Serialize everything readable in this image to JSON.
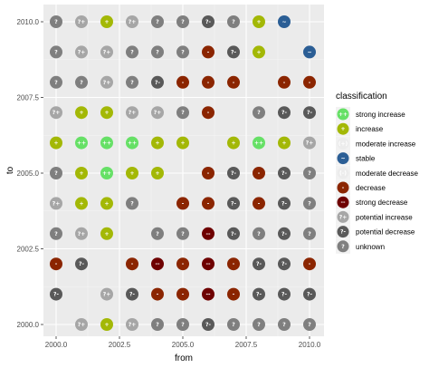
{
  "chart_data": {
    "type": "scatter",
    "xlabel": "from",
    "ylabel": "to",
    "xlim": [
      1999.95,
      2010.05
    ],
    "ylim": [
      1999.95,
      2010.05
    ],
    "x_ticks": [
      2000.0,
      2002.5,
      2005.0,
      2007.5,
      2010.0
    ],
    "x_tick_labels": [
      "2000.0",
      "2002.5",
      "2005.0",
      "2007.5",
      "2010.0"
    ],
    "y_ticks": [
      2000.0,
      2002.5,
      2005.0,
      2007.5,
      2010.0
    ],
    "y_tick_labels": [
      "2000.0",
      "2002.5",
      "2005.0",
      "2007.5",
      "2010.0"
    ],
    "grid": true,
    "legend_position": "right",
    "legend": {
      "title": "classification",
      "entries": [
        {
          "key": "strong_increase",
          "label": "strong increase",
          "glyph": "++",
          "color": "#66e066"
        },
        {
          "key": "increase",
          "label": "increase",
          "glyph": "+",
          "color": "#a3b806"
        },
        {
          "key": "moderate_increase",
          "label": "moderate increase",
          "glyph": "(+)",
          "color": "#ececec"
        },
        {
          "key": "stable",
          "label": "stable",
          "glyph": "~",
          "color": "#2b5e95"
        },
        {
          "key": "moderate_decrease",
          "label": "moderate decrease",
          "glyph": "(-)",
          "color": "#ececec"
        },
        {
          "key": "decrease",
          "label": "decrease",
          "glyph": "-",
          "color": "#8b2500"
        },
        {
          "key": "strong_decrease",
          "label": "strong decrease",
          "glyph": "--",
          "color": "#6e0000"
        },
        {
          "key": "potential_increase",
          "label": "potential increase",
          "glyph": "?+",
          "color": "#a6a6a6"
        },
        {
          "key": "potential_decrease",
          "label": "potential decrease",
          "glyph": "?-",
          "color": "#595959"
        },
        {
          "key": "unknown",
          "label": "unknown",
          "glyph": "?",
          "color": "#7f7f7f"
        }
      ]
    },
    "points": [
      {
        "x": 2000,
        "y": 2010,
        "class": "unknown"
      },
      {
        "x": 2001,
        "y": 2010,
        "class": "potential_increase"
      },
      {
        "x": 2002,
        "y": 2010,
        "class": "increase"
      },
      {
        "x": 2003,
        "y": 2010,
        "class": "potential_increase"
      },
      {
        "x": 2004,
        "y": 2010,
        "class": "unknown"
      },
      {
        "x": 2005,
        "y": 2010,
        "class": "unknown"
      },
      {
        "x": 2006,
        "y": 2010,
        "class": "potential_decrease"
      },
      {
        "x": 2007,
        "y": 2010,
        "class": "unknown"
      },
      {
        "x": 2008,
        "y": 2010,
        "class": "increase"
      },
      {
        "x": 2009,
        "y": 2010,
        "class": "stable"
      },
      {
        "x": 2000,
        "y": 2009,
        "class": "unknown"
      },
      {
        "x": 2001,
        "y": 2009,
        "class": "potential_increase"
      },
      {
        "x": 2002,
        "y": 2009,
        "class": "potential_increase"
      },
      {
        "x": 2003,
        "y": 2009,
        "class": "unknown"
      },
      {
        "x": 2004,
        "y": 2009,
        "class": "unknown"
      },
      {
        "x": 2005,
        "y": 2009,
        "class": "unknown"
      },
      {
        "x": 2006,
        "y": 2009,
        "class": "decrease"
      },
      {
        "x": 2007,
        "y": 2009,
        "class": "potential_decrease"
      },
      {
        "x": 2008,
        "y": 2009,
        "class": "increase"
      },
      {
        "x": 2010,
        "y": 2009,
        "class": "stable"
      },
      {
        "x": 2000,
        "y": 2008,
        "class": "unknown"
      },
      {
        "x": 2001,
        "y": 2008,
        "class": "unknown"
      },
      {
        "x": 2002,
        "y": 2008,
        "class": "potential_increase"
      },
      {
        "x": 2003,
        "y": 2008,
        "class": "unknown"
      },
      {
        "x": 2004,
        "y": 2008,
        "class": "potential_decrease"
      },
      {
        "x": 2005,
        "y": 2008,
        "class": "decrease"
      },
      {
        "x": 2006,
        "y": 2008,
        "class": "decrease"
      },
      {
        "x": 2007,
        "y": 2008,
        "class": "decrease"
      },
      {
        "x": 2009,
        "y": 2008,
        "class": "decrease"
      },
      {
        "x": 2010,
        "y": 2008,
        "class": "decrease"
      },
      {
        "x": 2000,
        "y": 2007,
        "class": "potential_increase"
      },
      {
        "x": 2001,
        "y": 2007,
        "class": "increase"
      },
      {
        "x": 2002,
        "y": 2007,
        "class": "increase"
      },
      {
        "x": 2003,
        "y": 2007,
        "class": "potential_increase"
      },
      {
        "x": 2004,
        "y": 2007,
        "class": "potential_increase"
      },
      {
        "x": 2005,
        "y": 2007,
        "class": "unknown"
      },
      {
        "x": 2006,
        "y": 2007,
        "class": "decrease"
      },
      {
        "x": 2008,
        "y": 2007,
        "class": "unknown"
      },
      {
        "x": 2009,
        "y": 2007,
        "class": "potential_decrease"
      },
      {
        "x": 2010,
        "y": 2007,
        "class": "potential_decrease"
      },
      {
        "x": 2000,
        "y": 2006,
        "class": "increase"
      },
      {
        "x": 2001,
        "y": 2006,
        "class": "strong_increase"
      },
      {
        "x": 2002,
        "y": 2006,
        "class": "strong_increase"
      },
      {
        "x": 2003,
        "y": 2006,
        "class": "strong_increase"
      },
      {
        "x": 2004,
        "y": 2006,
        "class": "increase"
      },
      {
        "x": 2005,
        "y": 2006,
        "class": "increase"
      },
      {
        "x": 2007,
        "y": 2006,
        "class": "increase"
      },
      {
        "x": 2008,
        "y": 2006,
        "class": "strong_increase"
      },
      {
        "x": 2009,
        "y": 2006,
        "class": "increase"
      },
      {
        "x": 2010,
        "y": 2006,
        "class": "potential_increase"
      },
      {
        "x": 2000,
        "y": 2005,
        "class": "unknown"
      },
      {
        "x": 2001,
        "y": 2005,
        "class": "increase"
      },
      {
        "x": 2002,
        "y": 2005,
        "class": "strong_increase"
      },
      {
        "x": 2003,
        "y": 2005,
        "class": "increase"
      },
      {
        "x": 2004,
        "y": 2005,
        "class": "increase"
      },
      {
        "x": 2006,
        "y": 2005,
        "class": "decrease"
      },
      {
        "x": 2007,
        "y": 2005,
        "class": "potential_decrease"
      },
      {
        "x": 2008,
        "y": 2005,
        "class": "decrease"
      },
      {
        "x": 2009,
        "y": 2005,
        "class": "potential_decrease"
      },
      {
        "x": 2010,
        "y": 2005,
        "class": "unknown"
      },
      {
        "x": 2000,
        "y": 2004,
        "class": "potential_increase"
      },
      {
        "x": 2001,
        "y": 2004,
        "class": "increase"
      },
      {
        "x": 2002,
        "y": 2004,
        "class": "increase"
      },
      {
        "x": 2003,
        "y": 2004,
        "class": "unknown"
      },
      {
        "x": 2005,
        "y": 2004,
        "class": "decrease"
      },
      {
        "x": 2006,
        "y": 2004,
        "class": "decrease"
      },
      {
        "x": 2007,
        "y": 2004,
        "class": "potential_decrease"
      },
      {
        "x": 2008,
        "y": 2004,
        "class": "decrease"
      },
      {
        "x": 2009,
        "y": 2004,
        "class": "potential_decrease"
      },
      {
        "x": 2010,
        "y": 2004,
        "class": "unknown"
      },
      {
        "x": 2000,
        "y": 2003,
        "class": "unknown"
      },
      {
        "x": 2001,
        "y": 2003,
        "class": "potential_increase"
      },
      {
        "x": 2002,
        "y": 2003,
        "class": "increase"
      },
      {
        "x": 2004,
        "y": 2003,
        "class": "unknown"
      },
      {
        "x": 2005,
        "y": 2003,
        "class": "unknown"
      },
      {
        "x": 2006,
        "y": 2003,
        "class": "strong_decrease"
      },
      {
        "x": 2007,
        "y": 2003,
        "class": "potential_decrease"
      },
      {
        "x": 2008,
        "y": 2003,
        "class": "unknown"
      },
      {
        "x": 2009,
        "y": 2003,
        "class": "potential_decrease"
      },
      {
        "x": 2010,
        "y": 2003,
        "class": "unknown"
      },
      {
        "x": 2000,
        "y": 2002,
        "class": "decrease"
      },
      {
        "x": 2001,
        "y": 2002,
        "class": "potential_decrease"
      },
      {
        "x": 2003,
        "y": 2002,
        "class": "decrease"
      },
      {
        "x": 2004,
        "y": 2002,
        "class": "strong_decrease"
      },
      {
        "x": 2005,
        "y": 2002,
        "class": "decrease"
      },
      {
        "x": 2006,
        "y": 2002,
        "class": "strong_decrease"
      },
      {
        "x": 2007,
        "y": 2002,
        "class": "decrease"
      },
      {
        "x": 2008,
        "y": 2002,
        "class": "potential_decrease"
      },
      {
        "x": 2009,
        "y": 2002,
        "class": "potential_decrease"
      },
      {
        "x": 2010,
        "y": 2002,
        "class": "decrease"
      },
      {
        "x": 2000,
        "y": 2001,
        "class": "potential_decrease"
      },
      {
        "x": 2002,
        "y": 2001,
        "class": "potential_increase"
      },
      {
        "x": 2003,
        "y": 2001,
        "class": "potential_decrease"
      },
      {
        "x": 2004,
        "y": 2001,
        "class": "decrease"
      },
      {
        "x": 2005,
        "y": 2001,
        "class": "decrease"
      },
      {
        "x": 2006,
        "y": 2001,
        "class": "strong_decrease"
      },
      {
        "x": 2007,
        "y": 2001,
        "class": "decrease"
      },
      {
        "x": 2008,
        "y": 2001,
        "class": "potential_decrease"
      },
      {
        "x": 2009,
        "y": 2001,
        "class": "potential_decrease"
      },
      {
        "x": 2010,
        "y": 2001,
        "class": "potential_decrease"
      },
      {
        "x": 2001,
        "y": 2000,
        "class": "potential_increase"
      },
      {
        "x": 2002,
        "y": 2000,
        "class": "increase"
      },
      {
        "x": 2003,
        "y": 2000,
        "class": "potential_increase"
      },
      {
        "x": 2004,
        "y": 2000,
        "class": "unknown"
      },
      {
        "x": 2005,
        "y": 2000,
        "class": "unknown"
      },
      {
        "x": 2006,
        "y": 2000,
        "class": "potential_decrease"
      },
      {
        "x": 2007,
        "y": 2000,
        "class": "unknown"
      },
      {
        "x": 2008,
        "y": 2000,
        "class": "unknown"
      },
      {
        "x": 2009,
        "y": 2000,
        "class": "unknown"
      },
      {
        "x": 2010,
        "y": 2000,
        "class": "unknown"
      }
    ]
  }
}
